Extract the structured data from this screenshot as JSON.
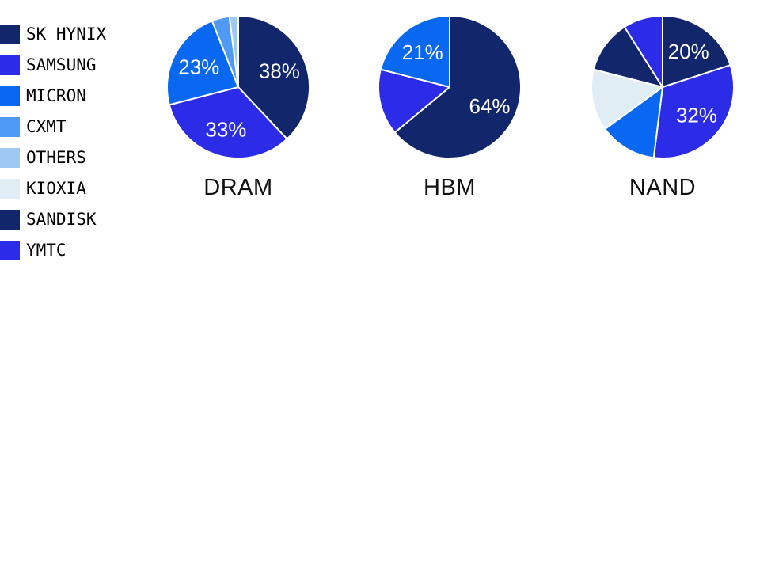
{
  "page": {
    "background": "#ffffff",
    "text_color": "#000000",
    "title_color": "#111111",
    "slice_label_color": "#ffffff"
  },
  "legend": {
    "position": "top-left",
    "items": [
      {
        "label": "SK HYNIX",
        "color": "#12266b"
      },
      {
        "label": "SAMSUNG",
        "color": "#2b2be8"
      },
      {
        "label": "MICRON",
        "color": "#0868f2"
      },
      {
        "label": "CXMT",
        "color": "#4f9af5"
      },
      {
        "label": "OTHERS",
        "color": "#9fc8f2"
      },
      {
        "label": "KIOXIA",
        "color": "#e0edf5"
      },
      {
        "label": "SANDISK",
        "color": "#12266b"
      },
      {
        "label": "YMTC",
        "color": "#2b2be8"
      }
    ]
  },
  "chart_data": [
    {
      "type": "pie",
      "title": "DRAM",
      "start_angle_deg": 0,
      "direction": "clockwise",
      "label_min_pct": 20,
      "slices": [
        {
          "name": "SK HYNIX",
          "value": 38,
          "label": "38%"
        },
        {
          "name": "SAMSUNG",
          "value": 33,
          "label": "33%"
        },
        {
          "name": "MICRON",
          "value": 23,
          "label": "23%"
        },
        {
          "name": "CXMT",
          "value": 4,
          "label": ""
        },
        {
          "name": "OTHERS",
          "value": 2,
          "label": ""
        }
      ]
    },
    {
      "type": "pie",
      "title": "HBM",
      "start_angle_deg": 0,
      "direction": "clockwise",
      "label_min_pct": 20,
      "slices": [
        {
          "name": "SK HYNIX",
          "value": 64,
          "label": "64%"
        },
        {
          "name": "SAMSUNG",
          "value": 15,
          "label": ""
        },
        {
          "name": "MICRON",
          "value": 21,
          "label": "21%"
        }
      ]
    },
    {
      "type": "pie",
      "title": "NAND",
      "start_angle_deg": 0,
      "direction": "clockwise",
      "label_min_pct": 20,
      "slices": [
        {
          "name": "SK HYNIX",
          "value": 20,
          "label": "20%"
        },
        {
          "name": "SAMSUNG",
          "value": 32,
          "label": "32%"
        },
        {
          "name": "MICRON",
          "value": 13,
          "label": ""
        },
        {
          "name": "KIOXIA",
          "value": 14,
          "label": ""
        },
        {
          "name": "SANDISK",
          "value": 12,
          "label": ""
        },
        {
          "name": "YMTC",
          "value": 9,
          "label": ""
        }
      ]
    }
  ]
}
